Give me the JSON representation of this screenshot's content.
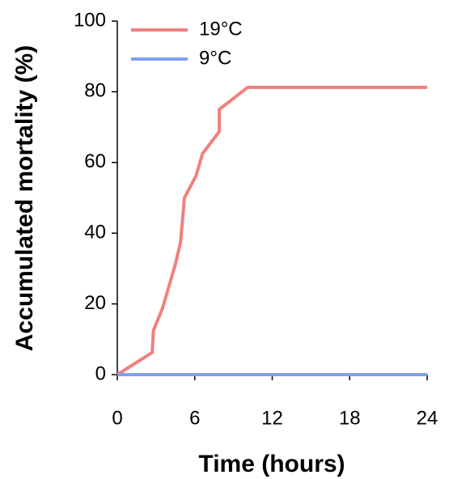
{
  "chart_data": {
    "type": "line",
    "x_label": "Time (hours)",
    "y_label": "Accumulated mortality (%)",
    "xlim": [
      0,
      24
    ],
    "xticks": [
      0,
      6,
      12,
      18,
      24
    ],
    "ylim": [
      0,
      100
    ],
    "yticks": [
      0,
      20,
      40,
      60,
      80,
      100
    ],
    "grid": false,
    "legend": "upper left",
    "series": [
      {
        "name": "19°C",
        "color": "#f08080",
        "x": [
          0,
          2.7,
          2.8,
          3.5,
          4,
          4.5,
          4.9,
          5.2,
          6.1,
          6.6,
          7.9,
          7.9,
          10.1,
          24
        ],
        "values": [
          0,
          6.25,
          12.5,
          18.75,
          25,
          31.25,
          37.5,
          50,
          56.25,
          62.5,
          68.75,
          75,
          81.25,
          81.25
        ]
      },
      {
        "name": "9°C",
        "color": "#7f9ff0",
        "x": [
          0,
          24
        ],
        "values": [
          0,
          0
        ]
      }
    ]
  }
}
